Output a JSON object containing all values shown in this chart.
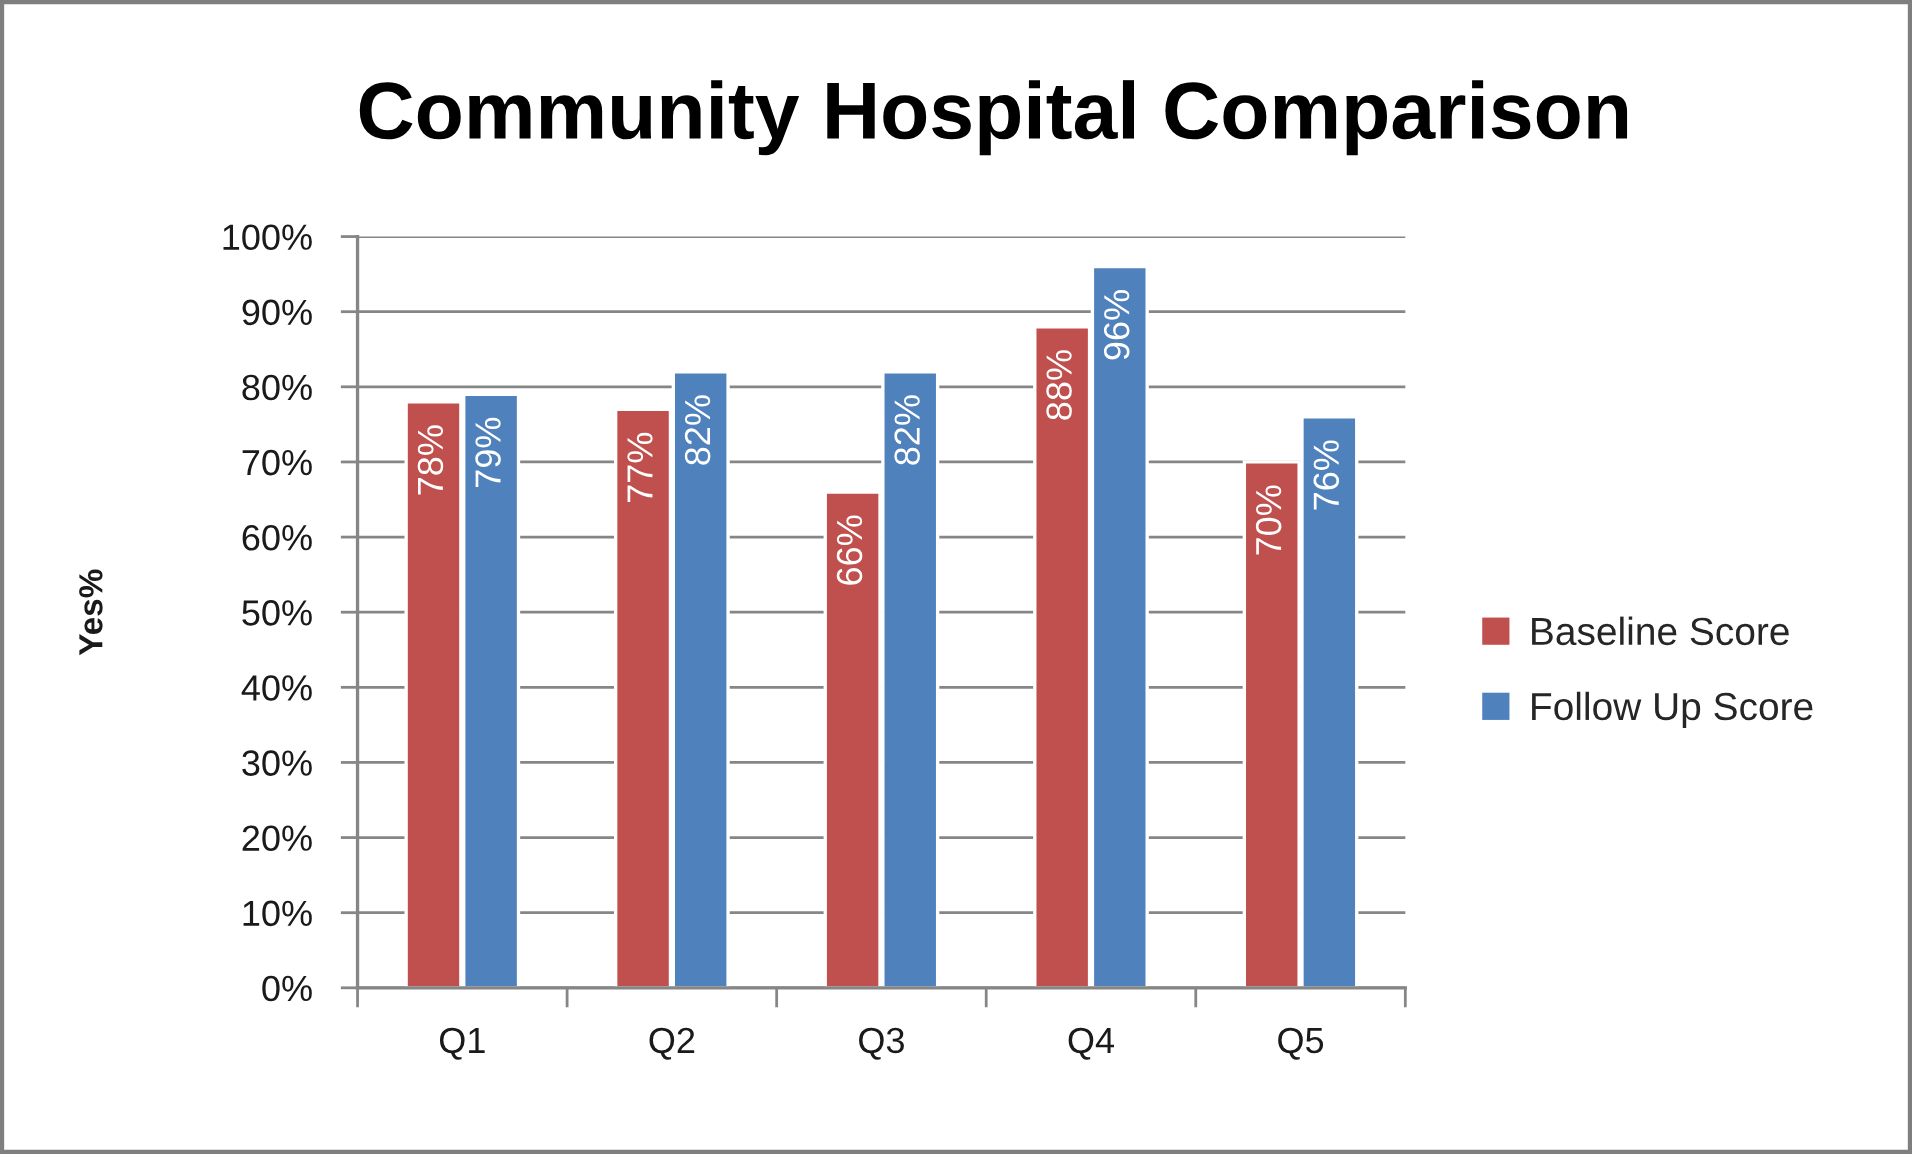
{
  "chart_data": {
    "type": "bar",
    "title": "Community Hospital Comparison",
    "ylabel": "Yes%",
    "categories": [
      "Q1",
      "Q2",
      "Q3",
      "Q4",
      "Q5"
    ],
    "series": [
      {
        "name": "Baseline Score",
        "color": "#c0504d",
        "values": [
          78,
          77,
          66,
          88,
          70
        ],
        "value_labels": [
          "78%",
          "77%",
          "66%",
          "88%",
          "70%"
        ]
      },
      {
        "name": "Follow Up Score",
        "color": "#4f81bd",
        "values": [
          79,
          82,
          82,
          96,
          76
        ],
        "value_labels": [
          "79%",
          "82%",
          "82%",
          "96%",
          "76%"
        ]
      }
    ],
    "ylim": [
      0,
      100
    ],
    "yticks": [
      {
        "value": 0,
        "label": "0%"
      },
      {
        "value": 10,
        "label": "10%"
      },
      {
        "value": 20,
        "label": "20%"
      },
      {
        "value": 30,
        "label": "30%"
      },
      {
        "value": 40,
        "label": "40%"
      },
      {
        "value": 50,
        "label": "50%"
      },
      {
        "value": 60,
        "label": "60%"
      },
      {
        "value": 70,
        "label": "70%"
      },
      {
        "value": 80,
        "label": "80%"
      },
      {
        "value": 90,
        "label": "90%"
      },
      {
        "value": 100,
        "label": "100%"
      }
    ],
    "grid": "y",
    "legend": "right"
  }
}
